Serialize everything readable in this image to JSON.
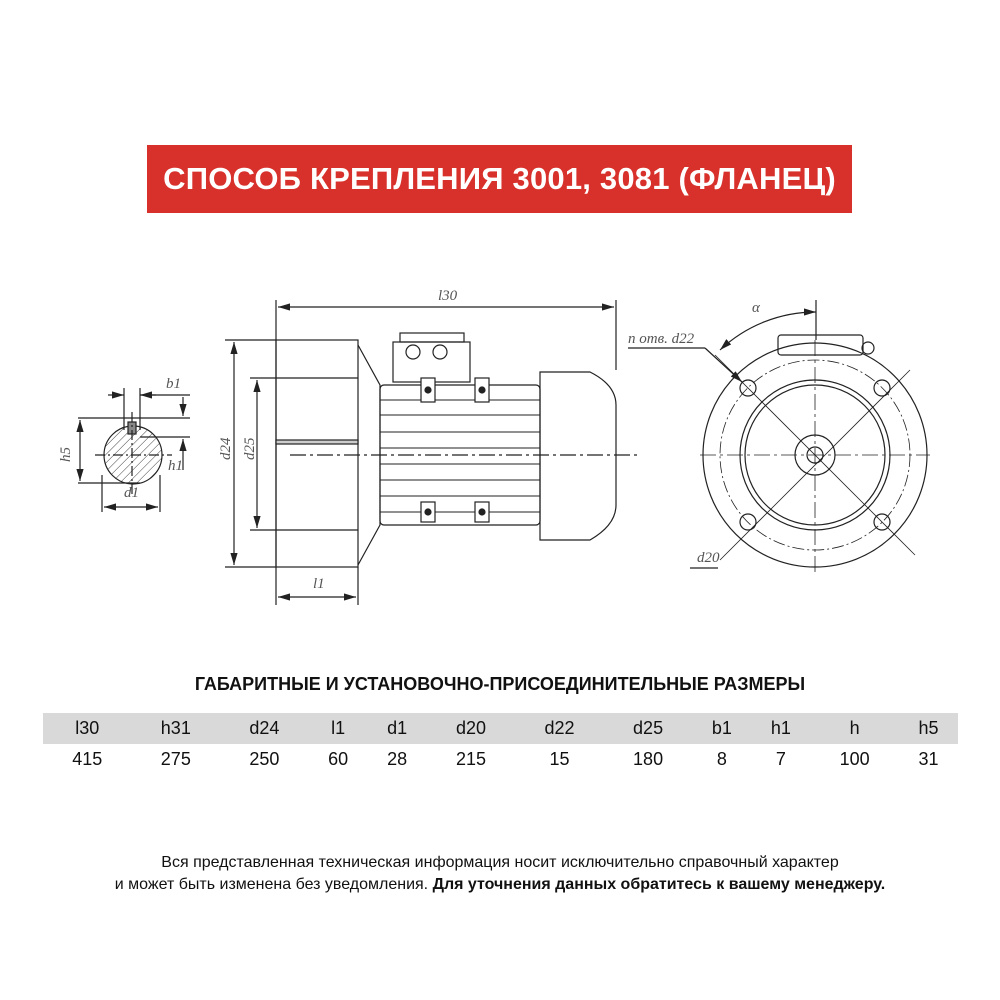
{
  "banner": {
    "title": "СПОСОБ КРЕПЛЕНИЯ 3001, 3081 (ФЛАНЕЦ)",
    "color": "#d8302b"
  },
  "drawing": {
    "labels": {
      "l30": "l30",
      "b1": "b1",
      "h5": "h5",
      "h1": "h1",
      "d1": "d1",
      "d24": "d24",
      "d25": "d25",
      "l1": "l1",
      "alpha": "α",
      "holes": "n отв. d22",
      "d20": "d20"
    }
  },
  "table": {
    "title": "ГАБАРИТНЫЕ И УСТАНОВОЧНО-ПРИСОЕДИНИТЕЛЬНЫЕ РАЗМЕРЫ",
    "headers": [
      "l30",
      "h31",
      "d24",
      "l1",
      "d1",
      "d20",
      "d22",
      "d25",
      "b1",
      "h1",
      "h",
      "h5"
    ],
    "values": [
      "415",
      "275",
      "250",
      "60",
      "28",
      "215",
      "15",
      "180",
      "8",
      "7",
      "100",
      "31"
    ]
  },
  "note": {
    "line1": "Вся представленная техническая информация носит исключительно справочный характер",
    "line2": "и может быть изменена без уведомления.",
    "bold": "Для уточнения данных обратитесь к вашему менеджеру."
  }
}
